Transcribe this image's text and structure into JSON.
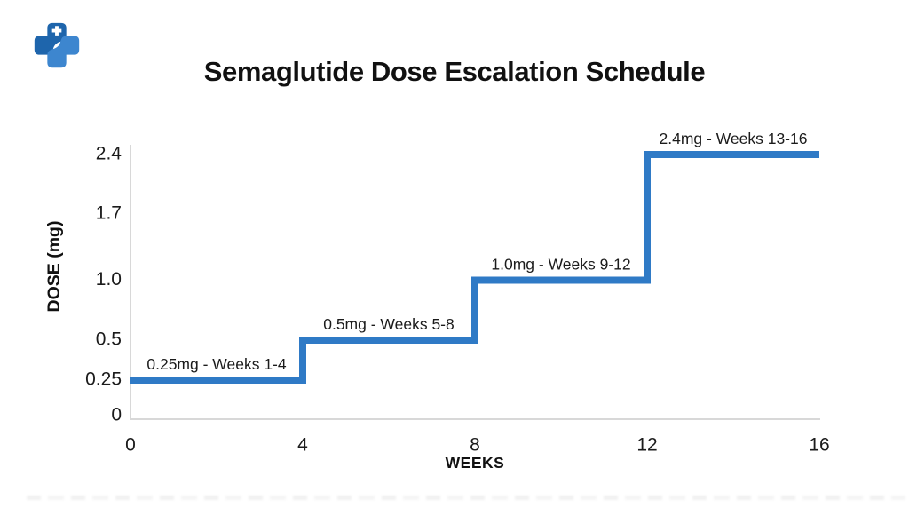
{
  "logo": {
    "name": "medical-cross-logo",
    "dark_color": "#1e65ac",
    "light_color": "#3d86cf",
    "plus_color": "#ffffff"
  },
  "chart_data": {
    "type": "line",
    "subtype": "step",
    "title": "Semaglutide Dose Escalation Schedule",
    "xlabel": "WEEKS",
    "ylabel": "DOSE (mg)",
    "xlim": [
      0,
      16
    ],
    "x_tick_values": [
      0,
      4,
      8,
      12,
      16
    ],
    "x_tick_labels": [
      "0",
      "4",
      "8",
      "12",
      "16"
    ],
    "y_tick_values": [
      0,
      0.25,
      0.5,
      1.0,
      1.7,
      2.4
    ],
    "y_tick_labels": [
      "0",
      "0.25",
      "0.5",
      "1.0",
      "1.7",
      "2.4"
    ],
    "grid": false,
    "legend": false,
    "line_color": "#2f7ac6",
    "axis_color": "#d8d8d8",
    "text_color": "#1b1b1b",
    "steps": [
      {
        "dose_mg": 0.25,
        "week_start": 0,
        "week_end": 4,
        "label": "0.25mg - Weeks 1-4"
      },
      {
        "dose_mg": 0.5,
        "week_start": 4,
        "week_end": 8,
        "label": "0.5mg - Weeks 5-8"
      },
      {
        "dose_mg": 1.0,
        "week_start": 8,
        "week_end": 12,
        "label": "1.0mg - Weeks 9-12"
      },
      {
        "dose_mg": 2.4,
        "week_start": 12,
        "week_end": 16,
        "label": "2.4mg - Weeks 13-16"
      }
    ]
  }
}
